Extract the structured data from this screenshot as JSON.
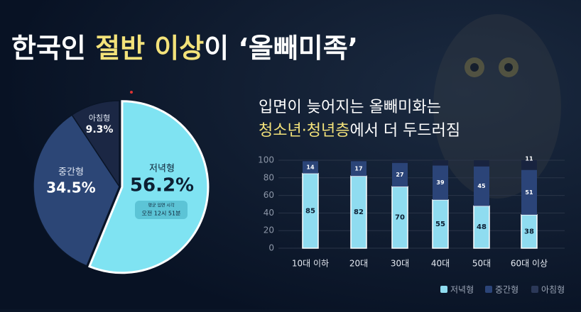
{
  "header": {
    "title_start": "한국인 ",
    "title_highlight": "절반 이상",
    "title_end": "이 ‘올빼미족’"
  },
  "chart_data": [
    {
      "type": "pie",
      "categories": [
        "저녁형",
        "중간형",
        "아침형"
      ],
      "values": [
        56.2,
        34.5,
        9.3
      ],
      "value_labels": [
        "56.2%",
        "34.5%",
        "9.3%"
      ],
      "colors": [
        "#7fe3f2",
        "#2c4676",
        "#1b2744"
      ],
      "annotation": [
        "평균 입면 시각",
        "오전 12시 51분"
      ]
    },
    {
      "type": "bar",
      "title": "입면이 늦어지는 올빼미화는",
      "subtitle_highlight": "청소년·청년층",
      "subtitle": "에서 더 두드러짐",
      "categories": [
        "10대 이하",
        "20대",
        "30대",
        "40대",
        "50대",
        "60대 이상"
      ],
      "series": [
        {
          "name": "저녁형",
          "color": "#8fdcf0",
          "values": [
            85,
            82,
            70,
            55,
            48,
            38
          ]
        },
        {
          "name": "중간형",
          "color": "#2b4478",
          "values": [
            14,
            17,
            27,
            39,
            45,
            51
          ]
        },
        {
          "name": "아침형",
          "color": "#18233f",
          "values": [
            1,
            1,
            3,
            6,
            7,
            11
          ],
          "value_labels": [
            null,
            null,
            null,
            null,
            null,
            "11"
          ]
        }
      ],
      "ylim": [
        0,
        100
      ],
      "yticks": [
        0,
        20,
        40,
        60,
        80,
        100
      ],
      "grid": true,
      "stacked": true,
      "legend": "bottom-right"
    }
  ]
}
